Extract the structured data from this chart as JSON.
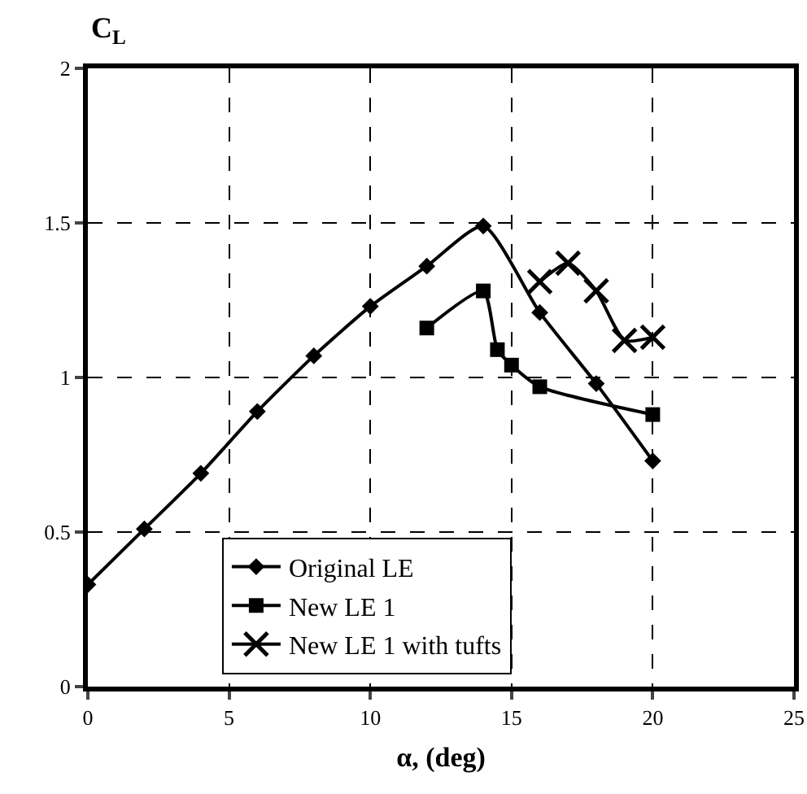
{
  "chart_data": {
    "type": "line",
    "xlabel": "α, (deg)",
    "ylabel": "C$_{L}$",
    "xlim": [
      0,
      25
    ],
    "xticks": [
      0,
      5,
      10,
      15,
      20,
      25
    ],
    "ylim": [
      0,
      2
    ],
    "yticks": [
      0,
      0.5,
      1,
      1.5,
      2
    ],
    "grid": true,
    "legend": "bottom left",
    "line_style": "solid",
    "series": [
      {
        "name": "Original LE",
        "color": "#000000",
        "marker": "diamond",
        "x": [
          0,
          2,
          4,
          6,
          8,
          10,
          12,
          14,
          16,
          18,
          20
        ],
        "values": [
          0.33,
          0.51,
          0.69,
          0.89,
          1.07,
          1.23,
          1.36,
          1.49,
          1.21,
          0.98,
          0.73
        ]
      },
      {
        "name": "New LE 1",
        "color": "#000000",
        "marker": "square",
        "x": [
          12,
          14,
          14.5,
          15,
          16,
          20
        ],
        "values": [
          1.16,
          1.28,
          1.09,
          1.04,
          0.97,
          0.88
        ]
      },
      {
        "name": "New LE 1 with tufts",
        "color": "#000000",
        "marker": "cross",
        "x": [
          16,
          17,
          18,
          19,
          20
        ],
        "values": [
          1.31,
          1.37,
          1.28,
          1.12,
          1.13
        ]
      }
    ]
  }
}
